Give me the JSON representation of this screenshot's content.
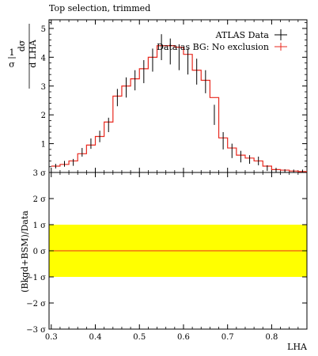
{
  "chart_data": [
    {
      "type": "line",
      "title": "Top selection, trimmed",
      "xlabel": "LHA",
      "ylabel_top": "1",
      "ylabel_sigma": "σ",
      "ylabel_dsigma": "dσ",
      "ylabel_dlha": "d LHA",
      "xlim": [
        0.295,
        0.88
      ],
      "ylim": [
        0,
        5.3
      ],
      "yticks": [
        1,
        2,
        3,
        4,
        5
      ],
      "ytick_labels": [
        "1",
        "2",
        "3",
        "4",
        "5"
      ],
      "legend": [
        {
          "label": "ATLAS Data",
          "color": "#000000",
          "marker": "errorbar"
        },
        {
          "label": "Data as BG: No exclusion",
          "color": "#e8281e",
          "marker": "line"
        }
      ],
      "bin_edges": [
        0.3,
        0.32,
        0.34,
        0.36,
        0.38,
        0.4,
        0.42,
        0.44,
        0.46,
        0.48,
        0.5,
        0.52,
        0.54,
        0.56,
        0.58,
        0.6,
        0.62,
        0.64,
        0.66,
        0.68,
        0.7,
        0.72,
        0.74,
        0.76,
        0.78,
        0.8,
        0.82,
        0.84,
        0.86,
        0.88
      ],
      "series": [
        {
          "name": "ATLAS Data",
          "x": [
            0.31,
            0.33,
            0.35,
            0.37,
            0.39,
            0.41,
            0.43,
            0.45,
            0.47,
            0.49,
            0.51,
            0.53,
            0.55,
            0.57,
            0.59,
            0.61,
            0.63,
            0.65,
            0.67,
            0.69,
            0.71,
            0.73,
            0.75,
            0.77,
            0.79,
            0.81,
            0.83,
            0.85,
            0.87
          ],
          "y": [
            0.22,
            0.3,
            0.35,
            0.7,
            1.0,
            1.25,
            1.65,
            2.6,
            2.95,
            3.2,
            3.5,
            3.9,
            4.35,
            4.2,
            4.0,
            3.85,
            3.5,
            3.15,
            2.0,
            1.1,
            0.75,
            0.55,
            0.45,
            0.4,
            0.15,
            0.08,
            0.05,
            0.05,
            0.05
          ],
          "err": [
            0.08,
            0.1,
            0.12,
            0.15,
            0.18,
            0.2,
            0.25,
            0.3,
            0.35,
            0.35,
            0.4,
            0.4,
            0.45,
            0.45,
            0.45,
            0.45,
            0.45,
            0.4,
            0.35,
            0.3,
            0.25,
            0.2,
            0.15,
            0.15,
            0.1,
            0.08,
            0.06,
            0.05,
            0.05
          ]
        },
        {
          "name": "Data as BG: No exclusion",
          "values": [
            0.22,
            0.28,
            0.4,
            0.65,
            0.95,
            1.25,
            1.75,
            2.65,
            3.0,
            3.25,
            3.6,
            4.0,
            4.4,
            4.4,
            4.35,
            4.1,
            3.55,
            3.2,
            2.6,
            1.2,
            0.85,
            0.6,
            0.5,
            0.4,
            0.22,
            0.1,
            0.08,
            0.05,
            0.03
          ]
        }
      ]
    },
    {
      "type": "line",
      "ylabel": "(Bkgd+BSM)/Data",
      "xlabel": "LHA",
      "xlim": [
        0.295,
        0.88
      ],
      "ylim": [
        -3,
        3
      ],
      "yticks": [
        -3,
        -2,
        -1,
        0,
        1,
        2,
        3
      ],
      "ytick_labels": [
        "−3 σ",
        "−2 σ",
        "−1 σ",
        "0 σ",
        "1 σ",
        "2 σ",
        "3 σ"
      ],
      "xticks": [
        0.3,
        0.4,
        0.5,
        0.6,
        0.7,
        0.8
      ],
      "xtick_labels": [
        "0.3",
        "0.4",
        "0.5",
        "0.6",
        "0.7",
        "0.8"
      ],
      "band": {
        "low": -1,
        "high": 1,
        "color": "#ffff00"
      },
      "line": {
        "y": 0,
        "color": "#e8281e"
      }
    }
  ]
}
